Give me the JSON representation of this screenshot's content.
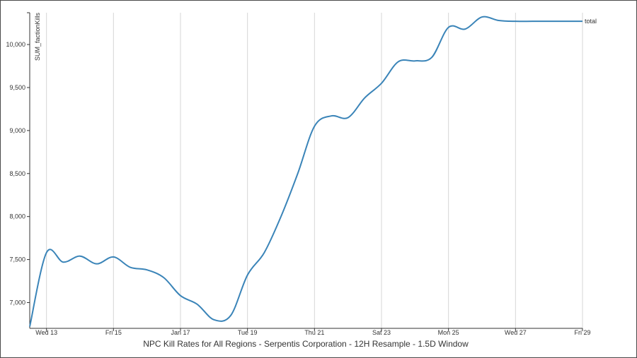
{
  "chart_data": {
    "type": "line",
    "title": "NPC Kill Rates for All Regions - Serpentis Corporation - 12H Resample - 1.5D Window",
    "ylabel": "SUM_factionKills",
    "xlabel": "",
    "ylim": [
      6700,
      10370
    ],
    "x_ticks": [
      "Wed 13",
      "Fri 15",
      "Jan 17",
      "Tue 19",
      "Thu 21",
      "Sat 23",
      "Mon 25",
      "Wed 27",
      "Fri 29"
    ],
    "x_range": [
      "Jan 12 12:00",
      "Jan 29 00:00"
    ],
    "y_ticks": [
      {
        "value": 7000,
        "label": "7,000"
      },
      {
        "value": 7500,
        "label": "7,500"
      },
      {
        "value": 8000,
        "label": "8,000"
      },
      {
        "value": 8500,
        "label": "8,500"
      },
      {
        "value": 9000,
        "label": "9,000"
      },
      {
        "value": 9500,
        "label": "9,500"
      },
      {
        "value": 10000,
        "label": "10,000"
      }
    ],
    "grid": {
      "vertical": true,
      "horizontal": false
    },
    "series": [
      {
        "name": "total",
        "color": "#3a84b8",
        "x": [
          "Jan 12 12:00",
          "Jan 13 00:00",
          "Jan 13 12:00",
          "Jan 14 00:00",
          "Jan 14 12:00",
          "Jan 15 00:00",
          "Jan 15 12:00",
          "Jan 16 00:00",
          "Jan 16 12:00",
          "Jan 17 00:00",
          "Jan 17 12:00",
          "Jan 18 00:00",
          "Jan 18 12:00",
          "Jan 19 00:00",
          "Jan 19 12:00",
          "Jan 20 00:00",
          "Jan 20 12:00",
          "Jan 21 00:00",
          "Jan 21 12:00",
          "Jan 22 00:00",
          "Jan 22 12:00",
          "Jan 23 00:00",
          "Jan 23 12:00",
          "Jan 24 00:00",
          "Jan 24 12:00",
          "Jan 25 00:00",
          "Jan 25 12:00",
          "Jan 26 00:00",
          "Jan 26 12:00",
          "Jan 27 00:00",
          "Jan 27 12:00",
          "Jan 28 00:00",
          "Jan 28 12:00",
          "Jan 29 00:00"
        ],
        "values": [
          6720,
          7580,
          7470,
          7540,
          7450,
          7530,
          7410,
          7380,
          7290,
          7080,
          6980,
          6800,
          6850,
          7320,
          7580,
          8000,
          8500,
          9050,
          9170,
          9150,
          9380,
          9550,
          9800,
          9810,
          9850,
          10200,
          10180,
          10320,
          10280,
          10270,
          10270,
          10270,
          10270,
          10270
        ]
      }
    ]
  }
}
